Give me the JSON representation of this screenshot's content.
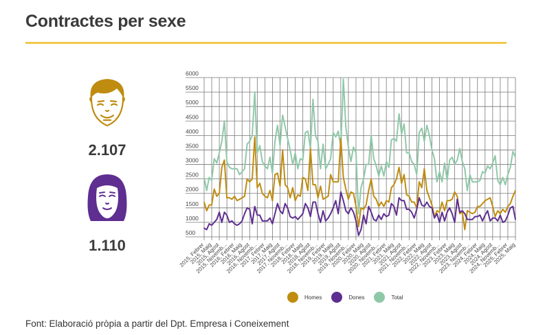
{
  "title": "Contractes per sexe",
  "stats": {
    "men": {
      "icon": "man-face-icon",
      "value": "2.107",
      "color": "#bf8c10"
    },
    "women": {
      "icon": "woman-face-icon",
      "value": "1.110",
      "color": "#5e2e91"
    }
  },
  "source": "Font: Elaboració pròpia a partir del Dpt. Empresa i Coneixement",
  "chart_data": {
    "type": "line",
    "title": "",
    "xlabel": "",
    "ylabel": "",
    "ylim": [
      500,
      6000
    ],
    "yticks": [
      500,
      1000,
      1500,
      2000,
      2500,
      3000,
      3500,
      4000,
      4500,
      5000,
      5500,
      6000
    ],
    "grid": true,
    "legend_position": "bottom",
    "x_start": "2015, Febrer",
    "x_end": "2025, Maig",
    "x_frequency": "monthly",
    "xtick_labels": [
      "2015, Febrer",
      "2015, Maig",
      "2015, Agost",
      "2015, Novemb...",
      "2016, Febrer",
      "2016, Maig",
      "2016, Agost",
      "2016, Novemb...",
      "2017, Febrer",
      "2017, Maig",
      "2017, Agost",
      "2017, Novemb...",
      "2018, Febrer",
      "2018, Maig",
      "2018, Agost",
      "2018, Novemb...",
      "2019, Febrer",
      "2019, Maig",
      "2019, Agost",
      "2019, Novemb...",
      "2020, Febrer",
      "2020, Maig",
      "2020, Agost",
      "2020, Novemb...",
      "2021, Febrer",
      "2021, Maig",
      "2021, Agost",
      "2021, Novemb...",
      "2022, Febrer",
      "2022, Maig",
      "2022, Agost",
      "2022, Novemb...",
      "2023, Febrer",
      "2023, Maig",
      "2023, Agost",
      "2023, Novemb...",
      "2024, Febrer",
      "2024, Maig",
      "2024, Agost",
      "2024, Novemb...",
      "2025, Febrer",
      "2025, Maig"
    ],
    "series": [
      {
        "name": "Homes",
        "color": "#bf8c10",
        "values": [
          1700,
          1400,
          1600,
          1600,
          2150,
          1900,
          2000,
          2900,
          3150,
          1850,
          1850,
          1800,
          1900,
          1750,
          1800,
          1850,
          1900,
          2500,
          2400,
          2500,
          3950,
          2200,
          2350,
          2000,
          1900,
          1850,
          2100,
          1750,
          2650,
          2700,
          2250,
          3500,
          2300,
          2200,
          1850,
          2200,
          1750,
          1950,
          1900,
          2550,
          2500,
          2100,
          3550,
          2300,
          2300,
          1850,
          2250,
          1800,
          1850,
          1900,
          2650,
          2400,
          2400,
          2400,
          3900,
          2550,
          2150,
          1800,
          2050,
          2000,
          1550,
          850,
          1500,
          1450,
          1600,
          2100,
          2500,
          1900,
          1800,
          1550,
          1700,
          1550,
          1750,
          1700,
          2200,
          2300,
          2500,
          2900,
          2350,
          2650,
          1950,
          1900,
          1700,
          1700,
          1500,
          2400,
          2200,
          2850,
          2100,
          1850,
          1600,
          1200,
          1400,
          1350,
          1700,
          1400,
          1750,
          1750,
          1800,
          2050,
          1900,
          1300,
          1350,
          750,
          1400,
          1350,
          1300,
          1350,
          1550,
          1550,
          1650,
          1750,
          1800,
          1850,
          1550,
          1200,
          1400,
          1300,
          1450,
          1350,
          1550,
          1650,
          1900,
          2100
        ]
      },
      {
        "name": "Dones",
        "color": "#5e2e91",
        "values": [
          800,
          750,
          950,
          900,
          1000,
          1100,
          1350,
          1000,
          1350,
          1250,
          1000,
          1050,
          950,
          900,
          950,
          1050,
          1300,
          1500,
          1450,
          950,
          1550,
          1250,
          1250,
          1050,
          1050,
          1050,
          1150,
          950,
          1300,
          1650,
          1400,
          1300,
          1650,
          1500,
          1200,
          1150,
          1200,
          1100,
          1200,
          1300,
          1650,
          1500,
          1200,
          1700,
          1700,
          1300,
          1000,
          1400,
          1050,
          1150,
          1300,
          1500,
          1750,
          1300,
          2050,
          1750,
          1400,
          1300,
          1500,
          1350,
          1050,
          550,
          750,
          1250,
          950,
          1550,
          1350,
          1100,
          1050,
          1250,
          1100,
          1300,
          1200,
          1250,
          1650,
          1550,
          1250,
          1850,
          1750,
          1750,
          1450,
          1450,
          1350,
          1150,
          1450,
          1850,
          1600,
          1550,
          1700,
          1550,
          1500,
          1150,
          1300,
          1000,
          1350,
          1050,
          1350,
          1500,
          1300,
          1000,
          1800,
          1350,
          1400,
          1300,
          1100,
          1100,
          1100,
          1200,
          1200,
          1250,
          1050,
          1250,
          1400,
          1050,
          1150,
          1150,
          1050,
          1250,
          1000,
          1050,
          1250,
          1500,
          1550,
          1100
        ]
      },
      {
        "name": "Total",
        "color": "#8fc8a8",
        "values": [
          2550,
          2100,
          2550,
          2450,
          3200,
          3050,
          3400,
          3800,
          4500,
          3100,
          2900,
          2850,
          2850,
          2850,
          2650,
          2750,
          2850,
          3700,
          3800,
          4000,
          5500,
          3400,
          3650,
          3100,
          2950,
          2850,
          3250,
          2700,
          3800,
          4350,
          3650,
          4700,
          4300,
          3900,
          3500,
          3000,
          3400,
          2850,
          3200,
          3150,
          4100,
          4150,
          3550,
          5250,
          4000,
          3800,
          2850,
          3700,
          2850,
          3000,
          3200,
          4100,
          3950,
          4150,
          3600,
          5950,
          4300,
          3600,
          3100,
          3600,
          3400,
          1300,
          2200,
          2500,
          3000,
          3000,
          4000,
          3200,
          2950,
          2600,
          2950,
          2600,
          3100,
          2900,
          3850,
          3900,
          3800,
          4750,
          4050,
          4400,
          3400,
          3400,
          3100,
          3000,
          2650,
          4100,
          4250,
          3800,
          4350,
          4000,
          3500,
          3200,
          2400,
          2750,
          2400,
          3050,
          2450,
          3150,
          3250,
          3000,
          3150,
          3550,
          3100,
          2850,
          2100,
          2650,
          2400,
          2400,
          2400,
          2450,
          2750,
          2700,
          2950,
          2850,
          3050,
          3300,
          2450,
          2300,
          2550,
          2300,
          2650,
          2900,
          3450,
          3250
        ]
      }
    ]
  }
}
